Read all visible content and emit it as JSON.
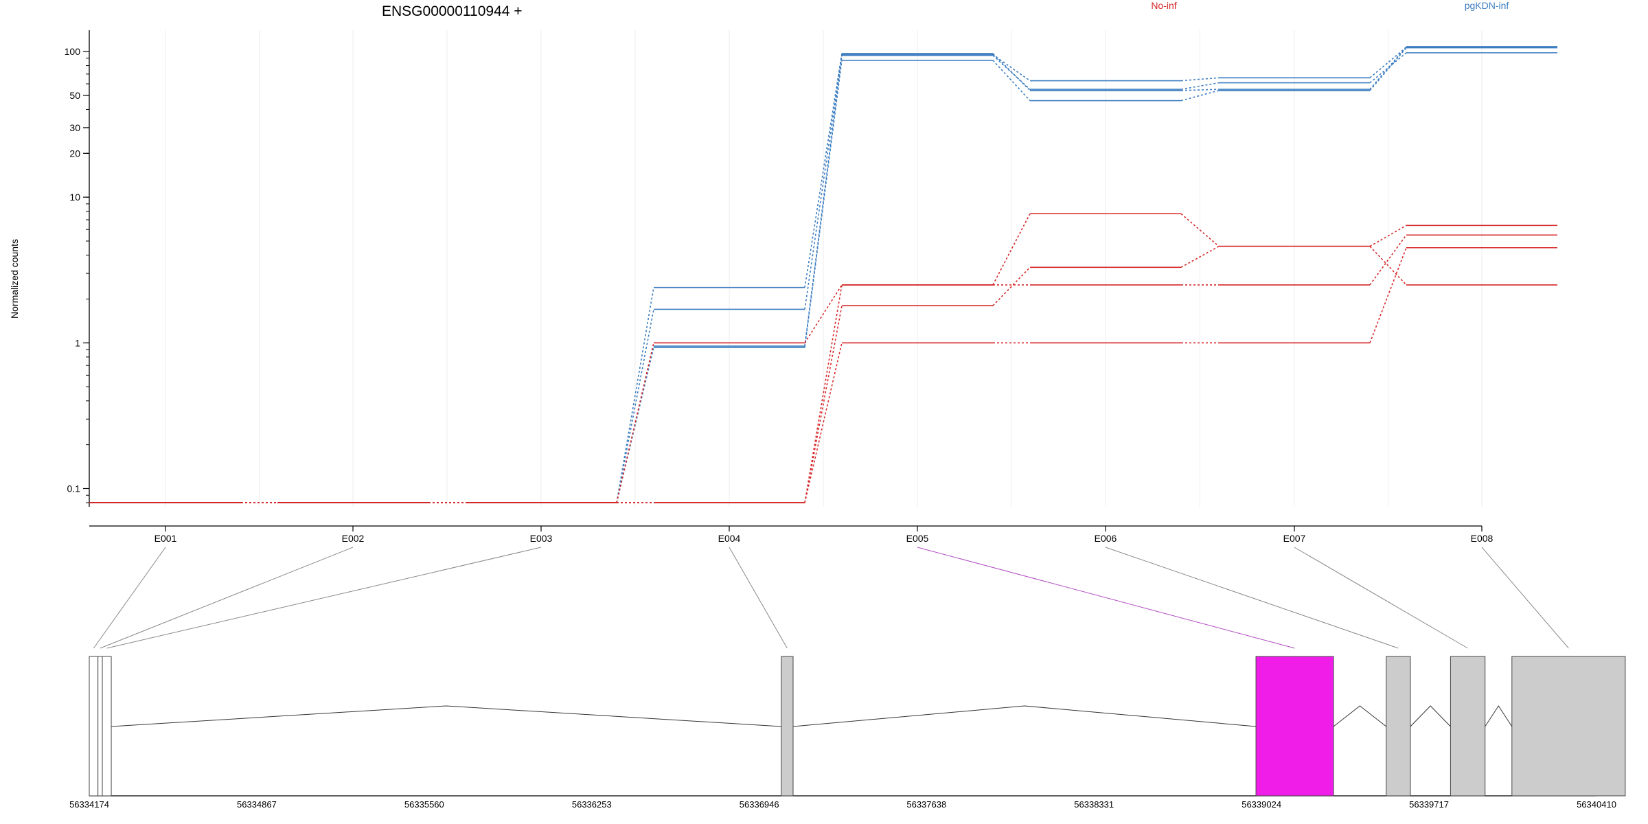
{
  "chart_data": {
    "type": "line",
    "title": "ENSG00000110944 +",
    "ylabel": "Normalized counts",
    "xlabel": "",
    "y_scale": "log",
    "ylim": [
      0.075,
      140
    ],
    "y_ticks": [
      0.1,
      1,
      10,
      20,
      30,
      50,
      100
    ],
    "y_tick_labels": [
      "0.1",
      "1",
      "10",
      "20",
      "30",
      "50",
      "100"
    ],
    "grid": "vertical",
    "legend": [
      {
        "name": "No-inf",
        "color": "#d62728",
        "placement": "top"
      },
      {
        "name": "pgKDN-inf",
        "color": "#3c7dc0",
        "placement": "top-right"
      }
    ],
    "categories": [
      "E001",
      "E002",
      "E003",
      "E004",
      "E005",
      "E006",
      "E007",
      "E008"
    ],
    "series": [
      {
        "group": "pgKDN-inf",
        "color": "#3c7dc0",
        "values": [
          0.08,
          0.08,
          0.08,
          2.4,
          97,
          54,
          55,
          108
        ]
      },
      {
        "group": "pgKDN-inf",
        "color": "#3c7dc0",
        "values": [
          0.08,
          0.08,
          0.08,
          1.7,
          95,
          63,
          66,
          107
        ]
      },
      {
        "group": "pgKDN-inf",
        "color": "#3c7dc0",
        "values": [
          0.08,
          0.08,
          0.08,
          0.95,
          94,
          55,
          61,
          98
        ]
      },
      {
        "group": "pgKDN-inf",
        "color": "#3c7dc0",
        "values": [
          0.08,
          0.08,
          0.08,
          0.93,
          87,
          46,
          54,
          106
        ]
      },
      {
        "group": "No-inf",
        "color": "#d62728",
        "values": [
          0.08,
          0.08,
          0.08,
          1.0,
          2.5,
          7.7,
          4.6,
          6.4
        ]
      },
      {
        "group": "No-inf",
        "color": "#d62728",
        "values": [
          0.08,
          0.08,
          0.08,
          0.08,
          2.5,
          2.5,
          2.5,
          5.5
        ]
      },
      {
        "group": "No-inf",
        "color": "#d62728",
        "values": [
          0.08,
          0.08,
          0.08,
          0.08,
          1.8,
          3.3,
          4.6,
          2.5
        ]
      },
      {
        "group": "No-inf",
        "color": "#d62728",
        "values": [
          0.08,
          0.08,
          0.08,
          0.08,
          1.0,
          1.0,
          1.0,
          4.5
        ]
      }
    ],
    "gene_model": {
      "type": "exon-track",
      "axis_ticks": [
        "56334174",
        "56334867",
        "56335560",
        "56336253",
        "56336946",
        "56337638",
        "56338331",
        "56339024",
        "56339717",
        "56340410"
      ],
      "axis_range": [
        56334174,
        56340410
      ],
      "highlight_exon": "E005",
      "highlight_color": "#f01de8",
      "exon_fill": "#cccccc",
      "exons": [
        {
          "id": "E001",
          "start": 56334174,
          "end": 56334210,
          "fill": "#ffffff"
        },
        {
          "id": "E002",
          "start": 56334210,
          "end": 56334228,
          "fill": "#ffffff"
        },
        {
          "id": "E003",
          "start": 56334228,
          "end": 56334265,
          "fill": "#ffffff"
        },
        {
          "id": "E004",
          "start": 56337037,
          "end": 56337086,
          "fill": "#cccccc"
        },
        {
          "id": "E005",
          "start": 56339001,
          "end": 56339322,
          "fill": "#f01de8"
        },
        {
          "id": "E006",
          "start": 56339540,
          "end": 56339640,
          "fill": "#cccccc"
        },
        {
          "id": "E007",
          "start": 56339806,
          "end": 56339949,
          "fill": "#cccccc"
        },
        {
          "id": "E008",
          "start": 56340060,
          "end": 56340529,
          "fill": "#cccccc"
        }
      ]
    }
  }
}
